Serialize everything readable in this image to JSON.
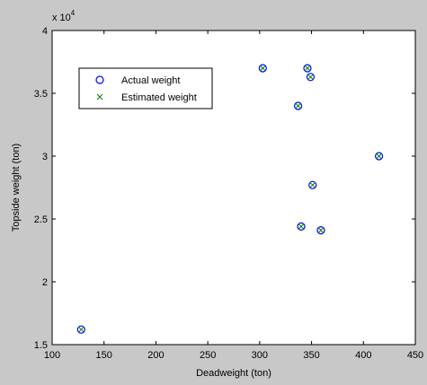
{
  "chart_data": {
    "type": "scatter",
    "title": "",
    "xlabel": "Deadweight (ton)",
    "ylabel": "Topside weight (ton)",
    "y_multiplier_label": "x 10",
    "y_multiplier_exponent": "4",
    "xlim": [
      100,
      450
    ],
    "ylim": [
      1.5,
      4
    ],
    "xticks": [
      100,
      150,
      200,
      250,
      300,
      350,
      400,
      450
    ],
    "xtick_labels": [
      "100",
      "150",
      "200",
      "250",
      "300",
      "350",
      "400",
      "450"
    ],
    "yticks": [
      1.5,
      2,
      2.5,
      3,
      3.5,
      4
    ],
    "ytick_labels": [
      "1.5",
      "2",
      "2.5",
      "3",
      "3.5",
      "4"
    ],
    "grid": false,
    "legend_position": "top-left",
    "series": [
      {
        "name": "Actual weight",
        "marker": "circle",
        "color": "#0000ff",
        "points": [
          {
            "x": 128,
            "y": 1.62
          },
          {
            "x": 303,
            "y": 3.7
          },
          {
            "x": 337,
            "y": 3.4
          },
          {
            "x": 340,
            "y": 2.44
          },
          {
            "x": 346,
            "y": 3.7
          },
          {
            "x": 349,
            "y": 3.63
          },
          {
            "x": 351,
            "y": 2.77
          },
          {
            "x": 359,
            "y": 2.41
          },
          {
            "x": 415,
            "y": 3.0
          }
        ]
      },
      {
        "name": "Estimated weight",
        "marker": "x",
        "color": "#008000",
        "points": [
          {
            "x": 128,
            "y": 1.62
          },
          {
            "x": 303,
            "y": 3.7
          },
          {
            "x": 337,
            "y": 3.4
          },
          {
            "x": 340,
            "y": 2.44
          },
          {
            "x": 346,
            "y": 3.7
          },
          {
            "x": 349,
            "y": 3.63
          },
          {
            "x": 351,
            "y": 2.77
          },
          {
            "x": 359,
            "y": 2.41
          },
          {
            "x": 415,
            "y": 3.0
          }
        ]
      }
    ]
  }
}
